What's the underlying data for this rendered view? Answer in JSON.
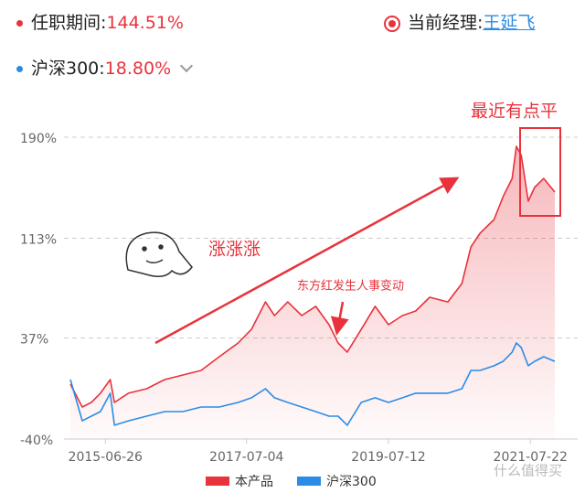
{
  "header": {
    "tenure_label": "任职期间:",
    "tenure_value": "144.51%",
    "manager_label": "当前经理:",
    "manager_name": "王延飞",
    "index_label": "沪深300:",
    "index_value": "18.80%"
  },
  "chart_data": {
    "type": "line",
    "annotations": [
      "最近有点平",
      "涨涨涨",
      "东方红发生人事变动"
    ],
    "watermark": "什么值得买",
    "x": [
      2014.98,
      2015.15,
      2015.28,
      2015.41,
      2015.55,
      2015.61,
      2015.81,
      2016.07,
      2016.33,
      2016.59,
      2016.85,
      2017.11,
      2017.38,
      2017.57,
      2017.77,
      2017.9,
      2018.09,
      2018.29,
      2018.49,
      2018.68,
      2018.81,
      2018.94,
      2019.14,
      2019.34,
      2019.53,
      2019.73,
      2019.92,
      2020.12,
      2020.38,
      2020.58,
      2020.71,
      2020.84,
      2021.04,
      2021.17,
      2021.3,
      2021.36,
      2021.43,
      2021.53,
      2021.62,
      2021.75,
      2021.91
    ],
    "series": [
      {
        "name": "本产品",
        "color": "#e8323c",
        "values": [
          1.8,
          -15.6,
          -12.1,
          -5.1,
          5.3,
          -12.1,
          -5.1,
          -1.7,
          5.3,
          8.8,
          12.3,
          22.7,
          33.2,
          43.6,
          64.5,
          54.1,
          64.5,
          54.1,
          61.1,
          47.1,
          33.2,
          26.2,
          43.6,
          61.1,
          47.1,
          54.1,
          57.6,
          68,
          64.5,
          78.5,
          106.4,
          116.8,
          127.3,
          144.7,
          158.6,
          183,
          176.1,
          141.2,
          151.7,
          158.6,
          148.2
        ]
      },
      {
        "name": "沪深300",
        "color": "#2b8ce6",
        "values": [
          5.3,
          -26.1,
          -22.6,
          -19.1,
          -5.1,
          -29.5,
          -26.1,
          -22.6,
          -19.1,
          -19.1,
          -15.6,
          -15.6,
          -12.1,
          -8.6,
          -1.7,
          -8.6,
          -12.1,
          -15.6,
          -19.1,
          -22.6,
          -22.6,
          -29.5,
          -12.1,
          -8.6,
          -12.1,
          -8.6,
          -5.1,
          -5.1,
          -5.1,
          -1.7,
          12.3,
          12.3,
          15.8,
          19.2,
          26.2,
          33.2,
          29.7,
          15.8,
          19.2,
          22.7,
          19.2
        ]
      }
    ],
    "xlim": [
      2014.98,
      2021.91
    ],
    "xticks": [
      {
        "value": 2015.48,
        "label": "2015-06-26"
      },
      {
        "value": 2017.5,
        "label": "2017-07-04"
      },
      {
        "value": 2019.53,
        "label": "2019-07-12"
      },
      {
        "value": 2021.56,
        "label": "2021-07-22"
      }
    ],
    "ylim": [
      -40,
      190
    ],
    "yticks": [
      {
        "value": -40,
        "label": "-40%"
      },
      {
        "value": 37,
        "label": "37%"
      },
      {
        "value": 113,
        "label": "113%"
      },
      {
        "value": 190,
        "label": "190%"
      }
    ],
    "grid": true,
    "legend": "bottom"
  }
}
